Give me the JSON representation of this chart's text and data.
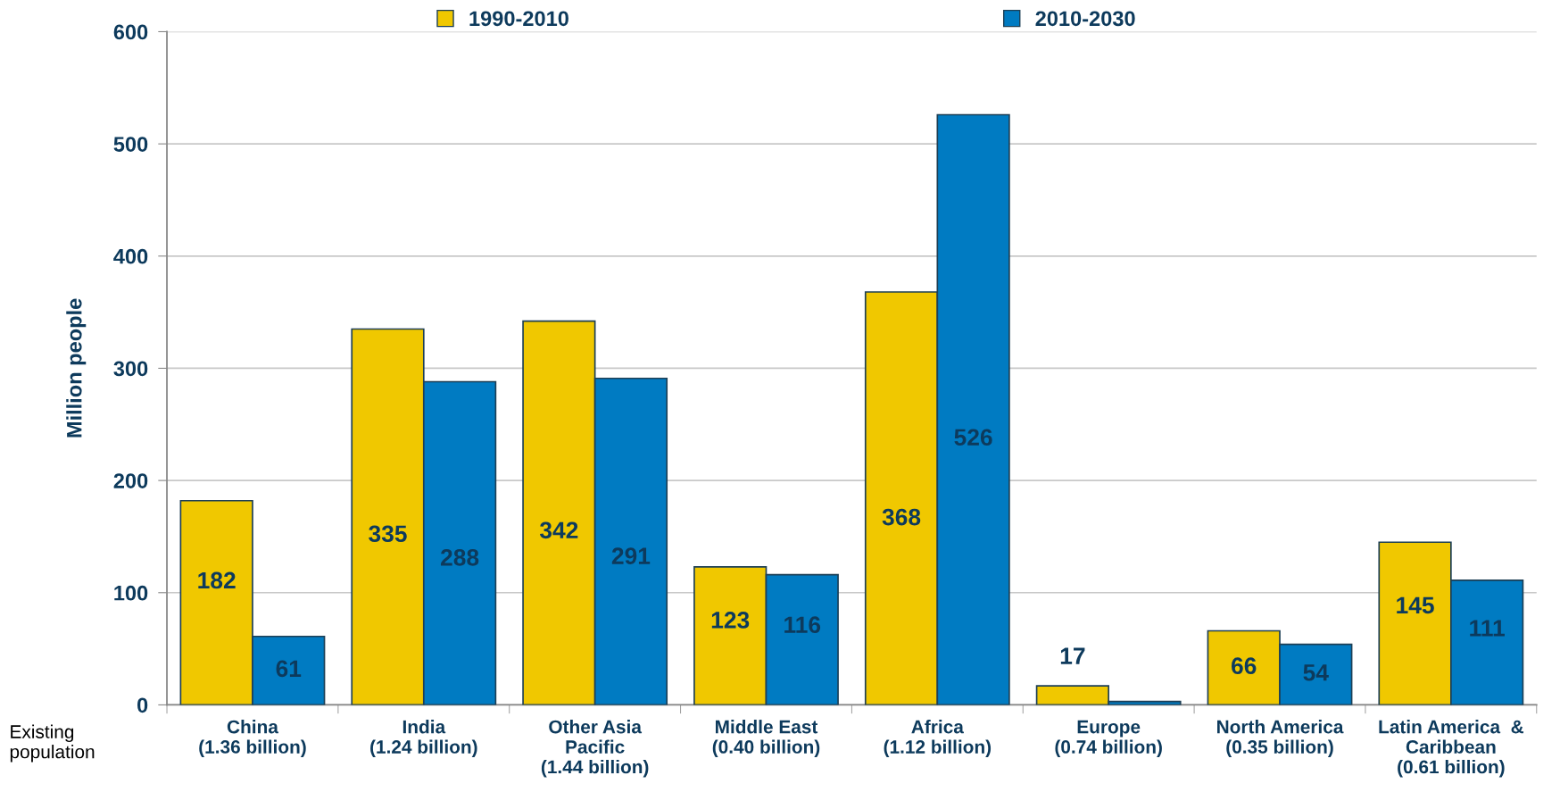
{
  "chart_data": {
    "type": "bar",
    "categories": [
      "China\n(1.36 billion)",
      "India\n(1.24 billion)",
      "Other Asia\nPacific\n(1.44 billion)",
      "Middle East\n(0.40 billion)",
      "Africa\n(1.12 billion)",
      "Europe\n(0.74 billion)",
      "North America\n(0.35 billion)",
      "Latin America  &\nCaribbean\n(0.61 billion)"
    ],
    "series": [
      {
        "name": "1990-2010",
        "color": "#f0c800",
        "values": [
          182,
          335,
          342,
          123,
          368,
          17,
          66,
          145
        ],
        "value_labels": [
          "182",
          "335",
          "342",
          "123",
          "368",
          "17",
          "66",
          "145"
        ]
      },
      {
        "name": "2010-2030",
        "color": "#007bc2",
        "values": [
          61,
          288,
          291,
          116,
          526,
          3,
          54,
          111
        ],
        "value_labels": [
          "61",
          "288",
          "291",
          "116",
          "526",
          null,
          "54",
          "111"
        ]
      }
    ],
    "ylabel": "Million people",
    "ylim": [
      0,
      600
    ],
    "yticks": [
      0,
      100,
      200,
      300,
      400,
      500,
      600
    ],
    "grid": "y",
    "legend": "top",
    "annotations": [
      "Existing\npopulation"
    ]
  }
}
